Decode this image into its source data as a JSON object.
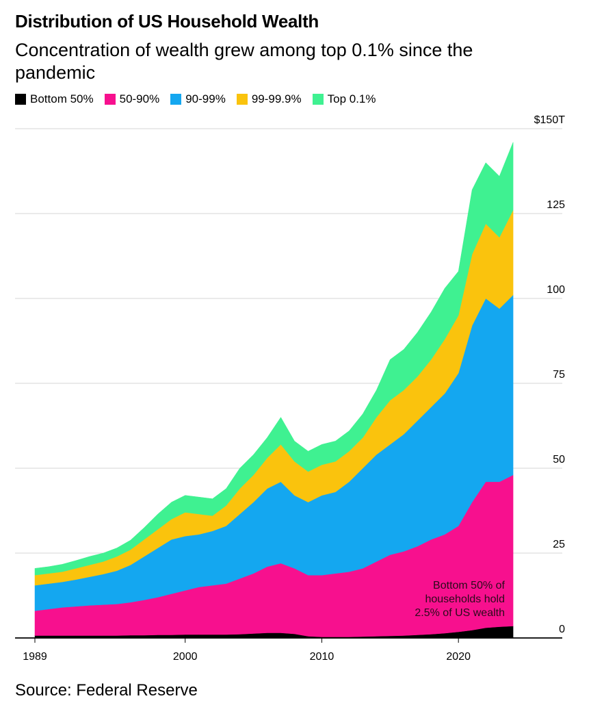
{
  "chart_data": {
    "type": "stacked-area",
    "title": "Distribution of US Household Wealth",
    "subtitle": "Concentration of wealth grew among top 0.1% since the pandemic",
    "source": "Source: Federal Reserve",
    "annotation": [
      "Bottom 50% of",
      "households hold",
      "2.5% of US wealth"
    ],
    "x": [
      1989,
      1990,
      1991,
      1992,
      1993,
      1994,
      1995,
      1996,
      1997,
      1998,
      1999,
      2000,
      2001,
      2002,
      2003,
      2004,
      2005,
      2006,
      2007,
      2008,
      2009,
      2010,
      2011,
      2012,
      2013,
      2014,
      2015,
      2016,
      2017,
      2018,
      2019,
      2020,
      2021,
      2022,
      2023,
      2024
    ],
    "xlim": [
      1988.9,
      2027.7
    ],
    "xticks": [
      1989,
      2000,
      2010,
      2020
    ],
    "ylim": [
      0,
      150
    ],
    "yticks": [
      0,
      25,
      50,
      75,
      100,
      125,
      {
        "value": 150,
        "label": "$150T"
      }
    ],
    "grid": true,
    "series": [
      {
        "name": "Bottom 50%",
        "color": "#000000",
        "values": [
          0.7,
          0.7,
          0.7,
          0.7,
          0.7,
          0.7,
          0.7,
          0.8,
          0.8,
          0.9,
          0.9,
          1.0,
          1.0,
          1.0,
          1.0,
          1.1,
          1.3,
          1.5,
          1.5,
          1.2,
          0.5,
          0.3,
          0.3,
          0.3,
          0.4,
          0.5,
          0.6,
          0.7,
          0.9,
          1.1,
          1.4,
          1.8,
          2.3,
          3.0,
          3.3,
          3.5
        ]
      },
      {
        "name": "50-90%",
        "color": "#f7108e",
        "values": [
          7.3,
          7.8,
          8.3,
          8.6,
          8.9,
          9.1,
          9.3,
          9.7,
          10.4,
          11.1,
          12.1,
          13.0,
          14.0,
          14.5,
          15.0,
          16.4,
          17.7,
          19.5,
          20.5,
          19.3,
          18.0,
          18.2,
          18.7,
          19.2,
          20.1,
          22.0,
          23.9,
          24.8,
          26.1,
          27.9,
          29.1,
          31.2,
          37.7,
          43.0,
          42.7,
          44.5
        ]
      },
      {
        "name": "90-99%",
        "color": "#14a7f0",
        "values": [
          7.5,
          7.5,
          7.5,
          7.9,
          8.4,
          9.0,
          9.8,
          11.0,
          12.8,
          14.5,
          16.0,
          16.0,
          15.5,
          16.0,
          17.0,
          19.0,
          21.0,
          23.0,
          24.0,
          21.5,
          21.5,
          23.5,
          24.0,
          26.5,
          29.5,
          31.5,
          32.5,
          34.5,
          37.0,
          39.0,
          41.5,
          45.0,
          52.0,
          54.0,
          51.0,
          53.0
        ]
      },
      {
        "name": "99-99.9%",
        "color": "#fac30d",
        "values": [
          3.0,
          3.0,
          3.0,
          3.3,
          3.5,
          3.7,
          4.2,
          4.5,
          5.0,
          5.5,
          6.0,
          7.0,
          6.0,
          4.5,
          6.0,
          7.5,
          8.0,
          9.0,
          11.0,
          10.0,
          9.0,
          9.0,
          9.0,
          9.0,
          9.0,
          11.0,
          13.0,
          13.0,
          13.0,
          14.0,
          16.0,
          17.0,
          21.0,
          22.0,
          21.0,
          25.0
        ]
      },
      {
        "name": "Top 0.1%",
        "color": "#3ff191",
        "values": [
          2.0,
          2.0,
          2.2,
          2.3,
          2.5,
          2.5,
          2.5,
          2.8,
          3.5,
          4.5,
          5.0,
          5.0,
          5.0,
          5.0,
          5.0,
          6.0,
          6.0,
          6.0,
          8.0,
          6.0,
          6.0,
          6.0,
          6.0,
          6.0,
          7.0,
          8.0,
          12.0,
          12.0,
          13.0,
          14.0,
          15.0,
          13.0,
          19.0,
          18.0,
          18.0,
          20.0
        ]
      }
    ]
  }
}
